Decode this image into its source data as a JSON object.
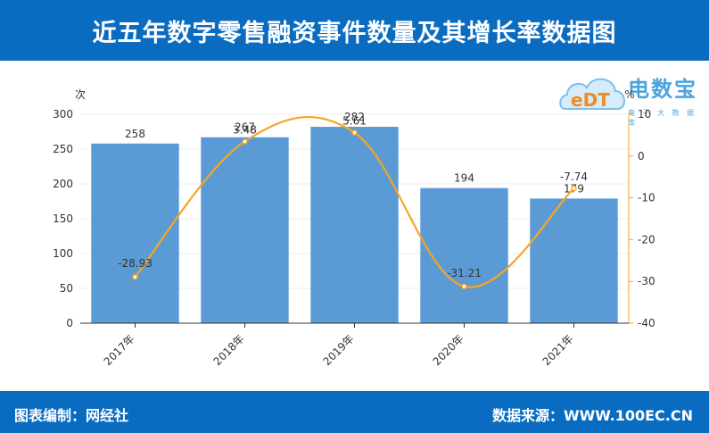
{
  "header": {
    "title": "近五年数字零售融资事件数量及其增长率数据图"
  },
  "footer": {
    "credit": "图表编制：网经社",
    "source": "数据来源：WWW.100EC.CN"
  },
  "logo": {
    "text": "电数宝",
    "sub": "电 子 大 数 据 库",
    "mark": "eDT"
  },
  "colors": {
    "bar": "#5b9bd5",
    "line": "#f5a623",
    "header": "#0a6cc0"
  },
  "chart_data": {
    "type": "bar",
    "categories": [
      "2017年",
      "2018年",
      "2019年",
      "2020年",
      "2021年"
    ],
    "series": [
      {
        "values": [
          258,
          267,
          282,
          194,
          179
        ],
        "axis": "left",
        "kind": "bar"
      },
      {
        "values": [
          -28.93,
          3.48,
          5.61,
          -31.21,
          -7.74
        ],
        "axis": "right",
        "kind": "line"
      }
    ],
    "y_left": {
      "unit": "次",
      "ticks": [
        "0",
        "50",
        "100",
        "150",
        "200",
        "250",
        "300"
      ],
      "range": [
        0,
        300
      ]
    },
    "y_right": {
      "unit": "%",
      "ticks": [
        "-40",
        "-30",
        "-20",
        "-10",
        "0",
        "10"
      ],
      "range": [
        -40,
        10
      ]
    },
    "bar_labels": [
      "258",
      "267",
      "282",
      "194",
      "179"
    ],
    "line_labels": [
      "-28.93",
      "3.48",
      "5.61",
      "-31.21",
      "-7.74"
    ]
  }
}
